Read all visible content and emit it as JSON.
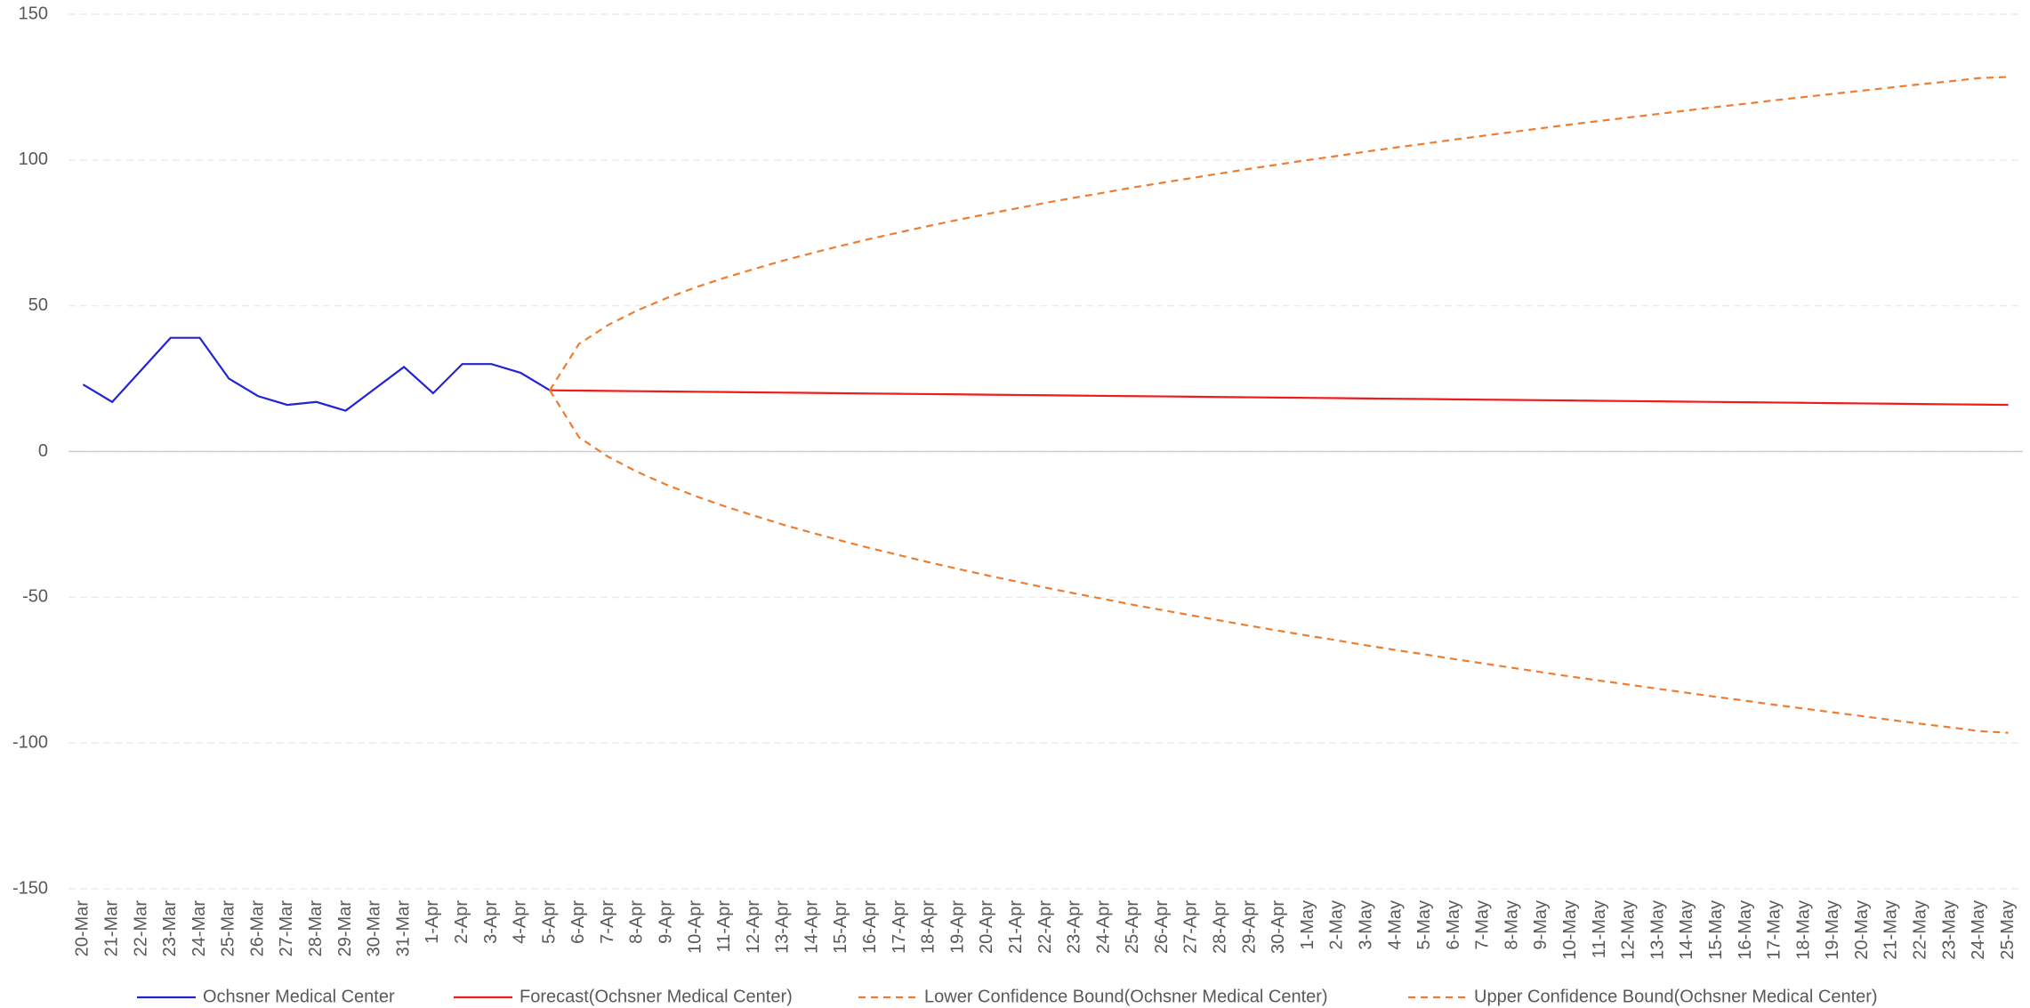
{
  "chart_data": {
    "type": "line",
    "categories": [
      "20-Mar",
      "21-Mar",
      "22-Mar",
      "23-Mar",
      "24-Mar",
      "25-Mar",
      "26-Mar",
      "27-Mar",
      "28-Mar",
      "29-Mar",
      "30-Mar",
      "31-Mar",
      "1-Apr",
      "2-Apr",
      "3-Apr",
      "4-Apr",
      "5-Apr",
      "6-Apr",
      "7-Apr",
      "8-Apr",
      "9-Apr",
      "10-Apr",
      "11-Apr",
      "12-Apr",
      "13-Apr",
      "14-Apr",
      "15-Apr",
      "16-Apr",
      "17-Apr",
      "18-Apr",
      "19-Apr",
      "20-Apr",
      "21-Apr",
      "22-Apr",
      "23-Apr",
      "24-Apr",
      "25-Apr",
      "26-Apr",
      "27-Apr",
      "28-Apr",
      "29-Apr",
      "30-Apr",
      "1-May",
      "2-May",
      "3-May",
      "4-May",
      "5-May",
      "6-May",
      "7-May",
      "8-May",
      "9-May",
      "10-May",
      "11-May",
      "12-May",
      "13-May",
      "14-May",
      "15-May",
      "16-May",
      "17-May",
      "18-May",
      "19-May",
      "20-May",
      "21-May",
      "22-May",
      "23-May",
      "24-May",
      "25-May"
    ],
    "series": [
      {
        "name": "Ochsner Medical Center",
        "color": "#2323d6",
        "dashed": false,
        "values": [
          23,
          17,
          28,
          39,
          39,
          25,
          19,
          16,
          17,
          14,
          21.5,
          29,
          20,
          30,
          30,
          27,
          21,
          null,
          null,
          null,
          null,
          null,
          null,
          null,
          null,
          null,
          null,
          null,
          null,
          null,
          null,
          null,
          null,
          null,
          null,
          null,
          null,
          null,
          null,
          null,
          null,
          null,
          null,
          null,
          null,
          null,
          null,
          null,
          null,
          null,
          null,
          null,
          null,
          null,
          null,
          null,
          null,
          null,
          null,
          null,
          null,
          null,
          null,
          null,
          null,
          null,
          null
        ]
      },
      {
        "name": "Forecast(Ochsner Medical Center)",
        "color": "#ee1c1c",
        "dashed": false,
        "values": [
          null,
          null,
          null,
          null,
          null,
          null,
          null,
          null,
          null,
          null,
          null,
          null,
          null,
          null,
          null,
          null,
          21,
          20.9,
          20.8,
          20.7,
          20.6,
          20.5,
          20.4,
          20.3,
          20.2,
          20.1,
          20.0,
          19.9,
          19.8,
          19.7,
          19.6,
          19.5,
          19.4,
          19.3,
          19.2,
          19.1,
          19.0,
          18.9,
          18.8,
          18.7,
          18.6,
          18.5,
          18.4,
          18.3,
          18.2,
          18.1,
          18.0,
          17.9,
          17.8,
          17.7,
          17.6,
          17.5,
          17.4,
          17.3,
          17.2,
          17.1,
          17.0,
          16.9,
          16.8,
          16.7,
          16.6,
          16.5,
          16.4,
          16.3,
          16.2,
          16.1,
          16.0
        ]
      },
      {
        "name": "Lower Confidence Bound(Ochsner Medical Center)",
        "color": "#ed7d31",
        "dashed": true,
        "values": [
          null,
          null,
          null,
          null,
          null,
          null,
          null,
          null,
          null,
          null,
          null,
          null,
          null,
          null,
          null,
          null,
          21,
          4.9,
          -1.8,
          -7.0,
          -11.4,
          -15.3,
          -18.8,
          -22.0,
          -25.1,
          -27.9,
          -30.6,
          -33.2,
          -35.6,
          -38.0,
          -40.3,
          -42.5,
          -44.6,
          -46.7,
          -48.7,
          -50.6,
          -52.6,
          -54.4,
          -56.2,
          -58.0,
          -59.8,
          -61.5,
          -63.2,
          -64.8,
          -66.5,
          -68.1,
          -69.6,
          -71.2,
          -72.7,
          -74.2,
          -75.7,
          -77.2,
          -78.6,
          -80.0,
          -81.4,
          -82.8,
          -84.2,
          -85.5,
          -86.9,
          -88.2,
          -89.5,
          -90.8,
          -92.1,
          -93.4,
          -94.6,
          -95.9,
          -96.5
        ]
      },
      {
        "name": "Upper Confidence Bound(Ochsner Medical Center)",
        "color": "#ed7d31",
        "dashed": true,
        "values": [
          null,
          null,
          null,
          null,
          null,
          null,
          null,
          null,
          null,
          null,
          null,
          null,
          null,
          null,
          null,
          null,
          21,
          36.9,
          43.4,
          48.4,
          52.6,
          56.3,
          59.6,
          62.6,
          65.5,
          68.1,
          70.6,
          73.0,
          75.2,
          77.4,
          79.5,
          81.5,
          83.4,
          85.3,
          87.1,
          88.8,
          90.6,
          92.2,
          93.8,
          95.4,
          97.0,
          98.5,
          100.0,
          101.4,
          102.9,
          104.3,
          105.6,
          107.0,
          108.3,
          109.6,
          110.9,
          112.2,
          113.4,
          114.6,
          115.8,
          117.0,
          118.2,
          119.3,
          120.5,
          121.6,
          122.7,
          123.8,
          124.9,
          126.0,
          127.0,
          128.1,
          128.5
        ]
      }
    ],
    "ylim": [
      -150,
      150
    ],
    "yticks": [
      -150,
      -100,
      -50,
      0,
      50,
      100,
      150
    ],
    "grid": true,
    "legend": "bottom"
  }
}
